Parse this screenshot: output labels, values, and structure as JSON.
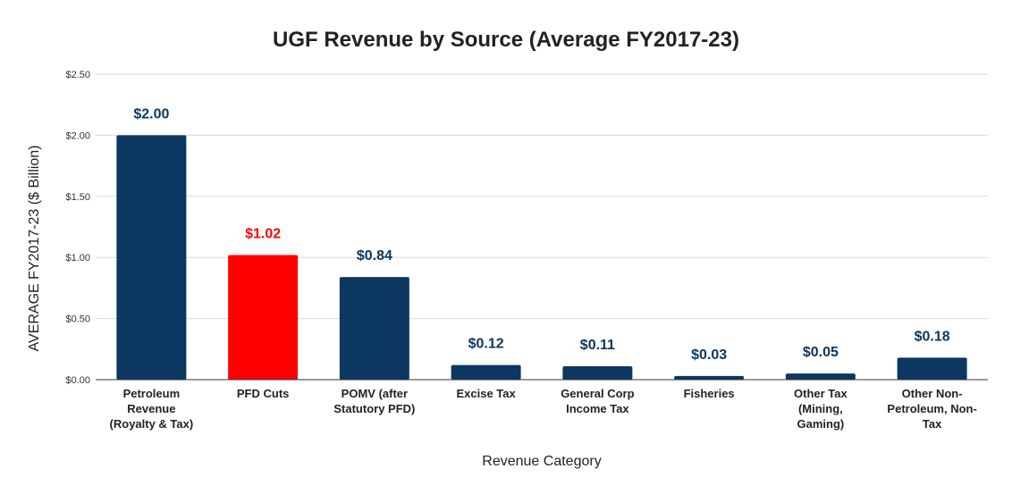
{
  "chart_data": {
    "type": "bar",
    "title": "UGF Revenue by Source (Average FY2017-23)",
    "xlabel": "Revenue Category",
    "ylabel": "AVERAGE FY2017-23 ($ Billion)",
    "ylim": [
      0,
      2.5
    ],
    "yticks": [
      "$0.00",
      "$0.50",
      "$1.00",
      "$1.50",
      "$2.00",
      "$2.50"
    ],
    "ytick_values": [
      0,
      0.5,
      1.0,
      1.5,
      2.0,
      2.5
    ],
    "grid": true,
    "categories": [
      [
        "Petroleum",
        "Revenue",
        "(Royalty & Tax)"
      ],
      [
        "PFD Cuts"
      ],
      [
        "POMV (after",
        "Statutory PFD)"
      ],
      [
        "Excise Tax"
      ],
      [
        "General Corp",
        "Income Tax"
      ],
      [
        "Fisheries"
      ],
      [
        "Other Tax",
        "(Mining,",
        "Gaming)"
      ],
      [
        "Other Non-",
        "Petroleum, Non-",
        "Tax"
      ]
    ],
    "values": [
      2.0,
      1.02,
      0.84,
      0.12,
      0.11,
      0.03,
      0.05,
      0.18
    ],
    "data_labels": [
      "$2.00",
      "$1.02",
      "$0.84",
      "$0.12",
      "$0.11",
      "$0.03",
      "$0.05",
      "$0.18"
    ],
    "colors": [
      "#0b3761",
      "#ff0000",
      "#0b3761",
      "#0b3761",
      "#0b3761",
      "#0b3761",
      "#0b3761",
      "#0b3761"
    ],
    "label_colors": [
      "#0b3761",
      "#ff0000",
      "#0b3761",
      "#0b3761",
      "#0b3761",
      "#0b3761",
      "#0b3761",
      "#0b3761"
    ],
    "gridline_color": "#d9d9d9",
    "axis_color": "#333333"
  }
}
